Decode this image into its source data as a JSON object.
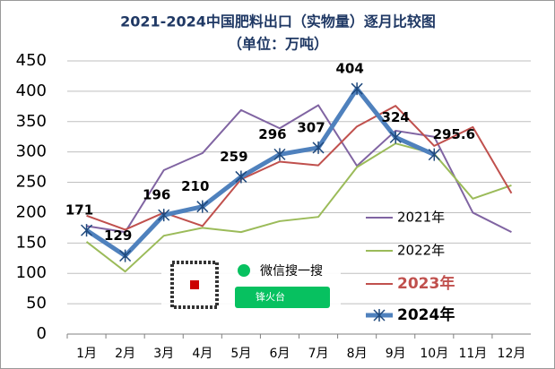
{
  "chart_data": {
    "type": "line",
    "title": "2021-2024中国肥料出口（实物量）逐月比较图",
    "subtitle": "（单位：万吨）",
    "categories": [
      "1月",
      "2月",
      "3月",
      "4月",
      "5月",
      "6月",
      "7月",
      "8月",
      "9月",
      "10月",
      "11月",
      "12月"
    ],
    "ylim": [
      0,
      450
    ],
    "yticks": [
      0,
      50,
      100,
      150,
      200,
      250,
      300,
      350,
      400,
      450
    ],
    "grid": true,
    "legend": "right",
    "series": [
      {
        "name": "2021年",
        "color": "#8064a2",
        "values": [
          178,
          168,
          270,
          298,
          369,
          339,
          377,
          277,
          335,
          325,
          200,
          168
        ]
      },
      {
        "name": "2022年",
        "color": "#9bbb59",
        "values": [
          152,
          103,
          162,
          175,
          168,
          186,
          193,
          275,
          314,
          297,
          223,
          245
        ]
      },
      {
        "name": "2023年",
        "color": "#c0504d",
        "values": [
          195,
          172,
          200,
          178,
          255,
          284,
          278,
          342,
          376,
          310,
          341,
          232
        ]
      },
      {
        "name": "2024年",
        "color": "#4f81bd",
        "values": [
          171,
          129,
          196,
          210,
          259,
          296,
          307,
          404,
          324,
          295.6,
          null,
          null
        ],
        "labels": true
      }
    ],
    "watermark": {
      "text": "微信搜一搜",
      "name": "锋火台"
    }
  }
}
